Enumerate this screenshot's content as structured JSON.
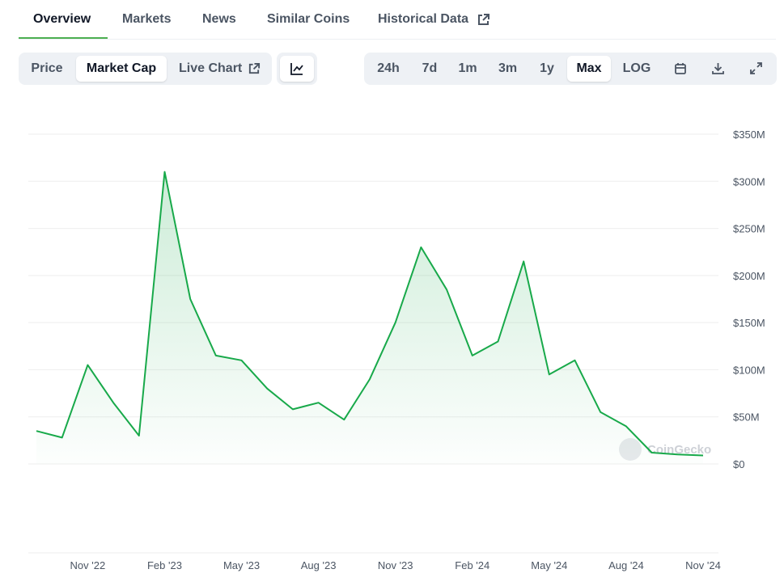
{
  "tabs": [
    "Overview",
    "Markets",
    "News",
    "Similar Coins",
    "Historical Data"
  ],
  "toolbar": {
    "data_types": [
      "Price",
      "Market Cap",
      "Live Chart"
    ],
    "ranges": [
      "24h",
      "7d",
      "1m",
      "3m",
      "1y",
      "Max",
      "LOG"
    ]
  },
  "chart_data": {
    "type": "area",
    "color": "#18a94a",
    "watermark": "CoinGecko",
    "grid": true,
    "x": [
      "2022-09",
      "2022-10",
      "2022-11",
      "2022-12",
      "2023-01",
      "2023-02",
      "2023-03",
      "2023-04",
      "2023-05",
      "2023-06",
      "2023-07",
      "2023-08",
      "2023-09",
      "2023-10",
      "2023-11",
      "2023-12",
      "2024-01",
      "2024-02",
      "2024-03",
      "2024-04",
      "2024-05",
      "2024-06",
      "2024-07",
      "2024-08",
      "2024-09",
      "2024-10",
      "2024-11"
    ],
    "values": [
      35000000,
      28000000,
      105000000,
      65000000,
      30000000,
      310000000,
      175000000,
      115000000,
      110000000,
      80000000,
      58000000,
      65000000,
      47000000,
      90000000,
      150000000,
      230000000,
      185000000,
      115000000,
      130000000,
      215000000,
      95000000,
      110000000,
      55000000,
      40000000,
      12000000,
      10000000,
      9000000
    ],
    "xlim": [
      "2022-09",
      "2024-11"
    ],
    "xticks": [
      {
        "value": "2022-11",
        "label": "Nov '22"
      },
      {
        "value": "2023-02",
        "label": "Feb '23"
      },
      {
        "value": "2023-05",
        "label": "May '23"
      },
      {
        "value": "2023-08",
        "label": "Aug '23"
      },
      {
        "value": "2023-11",
        "label": "Nov '23"
      },
      {
        "value": "2024-02",
        "label": "Feb '24"
      },
      {
        "value": "2024-05",
        "label": "May '24"
      },
      {
        "value": "2024-08",
        "label": "Aug '24"
      },
      {
        "value": "2024-11",
        "label": "Nov '24"
      }
    ],
    "ylim": [
      0,
      350000000
    ],
    "yticks": [
      {
        "value": 0,
        "label": "$0"
      },
      {
        "value": 50000000,
        "label": "$50M"
      },
      {
        "value": 100000000,
        "label": "$100M"
      },
      {
        "value": 150000000,
        "label": "$150M"
      },
      {
        "value": 200000000,
        "label": "$200M"
      },
      {
        "value": 250000000,
        "label": "$250M"
      },
      {
        "value": 300000000,
        "label": "$300M"
      },
      {
        "value": 350000000,
        "label": "$350M"
      }
    ]
  }
}
